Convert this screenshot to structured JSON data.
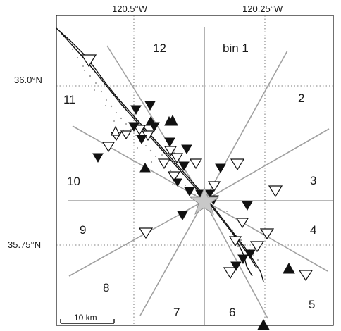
{
  "map": {
    "longitude_labels": [
      "120.5°W",
      "120.25°W"
    ],
    "latitude_labels": [
      "36.0°N",
      "35.75°N"
    ],
    "scale_bar_label": "10 km",
    "epicenter_color": "#c8c8c8",
    "sector_line_color": "#a0a0a0",
    "fault_color": "#111111",
    "aftershock_color": "#9a9a9a"
  },
  "bins": {
    "bin1": "bin 1",
    "bin2": "2",
    "bin3": "3",
    "bin4": "4",
    "bin5": "5",
    "bin6": "6",
    "bin7": "7",
    "bin8": "8",
    "bin9": "9",
    "bin10": "10",
    "bin11": "11",
    "bin12": "12"
  },
  "stations": {
    "open_down_triangles": 21,
    "filled_down_triangles": 20,
    "filled_up_triangles": 6,
    "open_up_triangles": 1
  }
}
